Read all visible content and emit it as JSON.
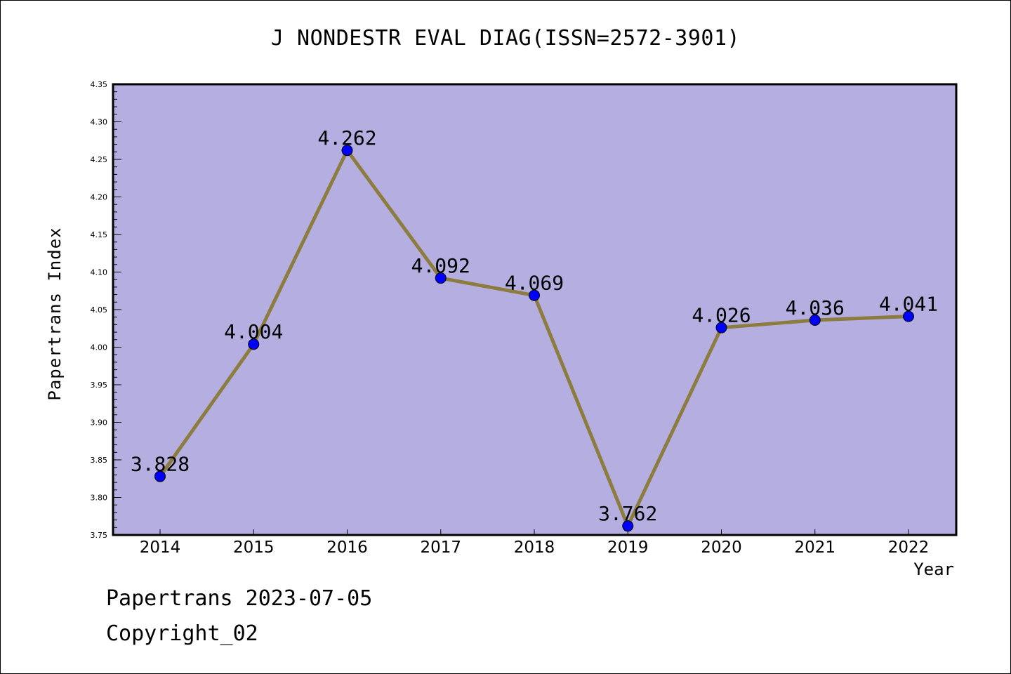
{
  "chart_data": {
    "type": "line",
    "title": "J NONDESTR EVAL DIAG(ISSN=2572-3901)",
    "xlabel": "Year",
    "ylabel": "Papertrans Index",
    "categories": [
      "2014",
      "2015",
      "2016",
      "2017",
      "2018",
      "2019",
      "2020",
      "2021",
      "2022"
    ],
    "values": [
      3.828,
      4.004,
      4.262,
      4.092,
      4.069,
      3.762,
      4.026,
      4.036,
      4.041
    ],
    "data_labels": [
      "3.828",
      "4.004",
      "4.262",
      "4.092",
      "4.069",
      "3.762",
      "4.026",
      "4.036",
      "4.041"
    ],
    "ylim": [
      3.75,
      4.35
    ],
    "yticks": [
      "3.75",
      "3.80",
      "3.85",
      "3.90",
      "3.95",
      "4.00",
      "4.05",
      "4.10",
      "4.15",
      "4.20",
      "4.25",
      "4.30",
      "4.35"
    ],
    "grid": false,
    "legend": "none",
    "colors": {
      "plot_background": "#b5aee1",
      "line": "#8c7c3e",
      "marker": "#0000ff"
    }
  },
  "footer": {
    "line1": "Papertrans 2023-07-05",
    "line2": "Copyright_02"
  }
}
